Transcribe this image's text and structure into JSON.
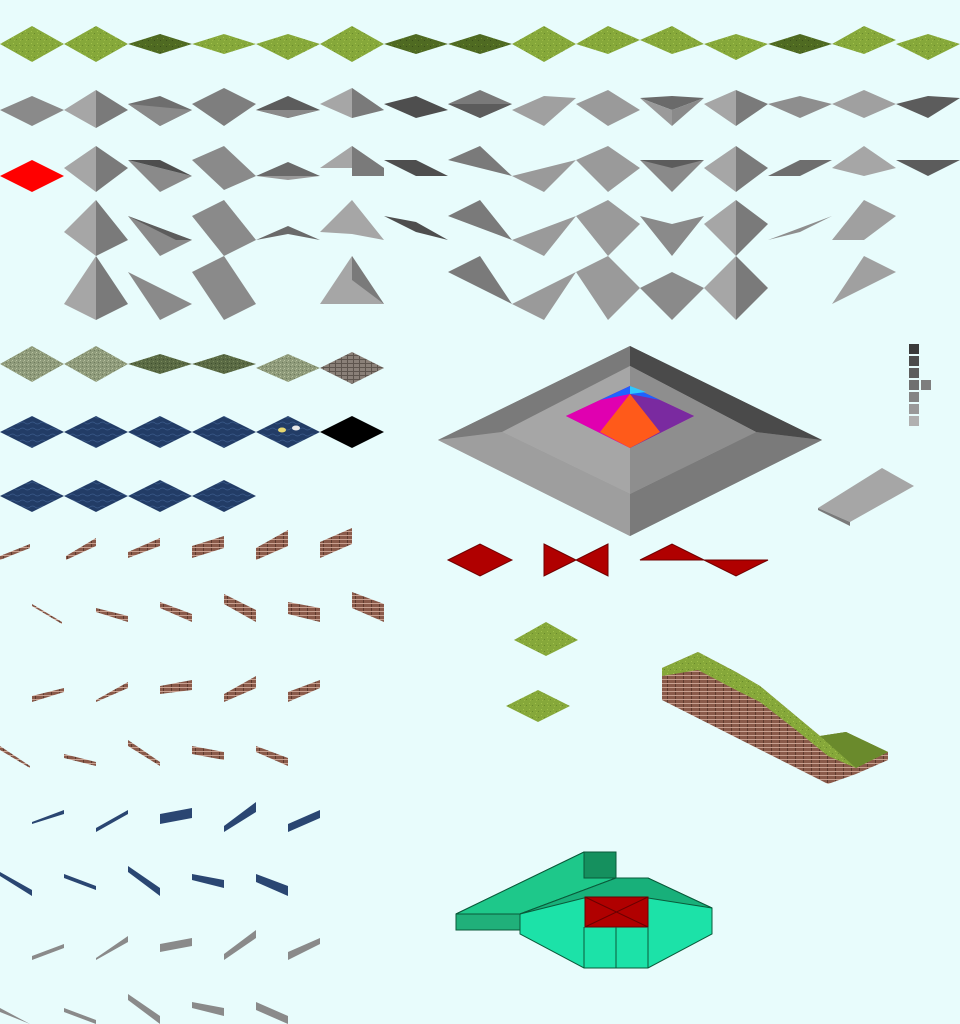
{
  "sheet": {
    "background": "#e8fcfc",
    "tile_size": "64x32 isometric",
    "colors": {
      "grass": "#86a83a",
      "grass_dark": "#4f6a22",
      "slope_light": "#a6a6a6",
      "slope_mid": "#8a8a8a",
      "slope_dark": "#5c5c5c",
      "highlight_red": "#ff0000",
      "cursor_red": "#b00000",
      "water": "#223c66",
      "water_light": "#31507e",
      "earth": "#8a5a4a",
      "pond_green": "#1ccf90",
      "pyramid_orange": "#ff5a1a",
      "pyramid_pink": "#e000b0",
      "pyramid_purple": "#7a2aa0",
      "pyramid_blue": "#1e62ff"
    },
    "sections": [
      {
        "name": "grass-slope-tiles",
        "count": 15
      },
      {
        "name": "gray-slope-row-1",
        "count": 15
      },
      {
        "name": "gray-slope-row-2",
        "count": 15
      },
      {
        "name": "gray-slope-row-3",
        "count": 13
      },
      {
        "name": "gray-slope-row-4",
        "count": 10
      },
      {
        "name": "rough-terrain-tiles",
        "count": 6
      },
      {
        "name": "water-tiles-row-1",
        "count": 6
      },
      {
        "name": "water-tiles-row-2",
        "count": 4
      },
      {
        "name": "earth-edge-strips",
        "count": 28
      },
      {
        "name": "water-edge-strips",
        "count": 10
      },
      {
        "name": "gray-edge-strips",
        "count": 10
      },
      {
        "name": "big-pyramid",
        "count": 1
      },
      {
        "name": "selection-cursors",
        "count": 3
      },
      {
        "name": "shade-swatches",
        "count": 8
      },
      {
        "name": "ramp-tile",
        "count": 1
      },
      {
        "name": "grass-samples",
        "count": 2
      },
      {
        "name": "grass-cliff-strip",
        "count": 1
      },
      {
        "name": "green-pond-model",
        "count": 1
      }
    ]
  }
}
